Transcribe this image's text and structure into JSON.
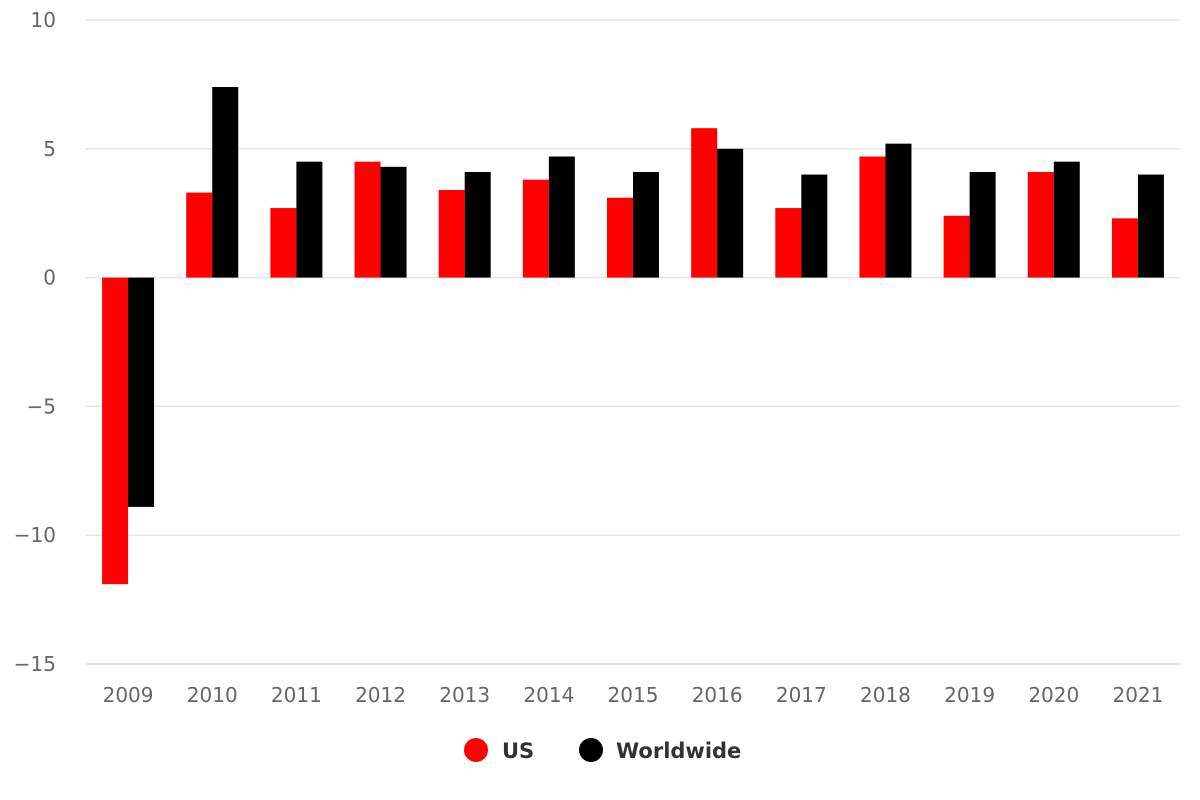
{
  "chart_data": {
    "type": "bar",
    "title": "",
    "xlabel": "",
    "ylabel": "",
    "categories": [
      "2009",
      "2010",
      "2011",
      "2012",
      "2013",
      "2014",
      "2015",
      "2016",
      "2017",
      "2018",
      "2019",
      "2020",
      "2021"
    ],
    "series": [
      {
        "name": "US",
        "color": "#ff0000",
        "values": [
          -11.9,
          3.3,
          2.7,
          4.5,
          3.4,
          3.8,
          3.1,
          5.8,
          2.7,
          4.7,
          2.4,
          4.1,
          2.3
        ]
      },
      {
        "name": "Worldwide",
        "color": "#000000",
        "values": [
          -8.9,
          7.4,
          4.5,
          4.3,
          4.1,
          4.7,
          4.1,
          5.0,
          4.0,
          5.2,
          4.1,
          4.5,
          4.0
        ]
      }
    ],
    "ylim": [
      -15,
      10
    ],
    "yticks": [
      10,
      5,
      0,
      -5,
      -10,
      -15
    ],
    "ytick_labels": [
      "10",
      "5",
      "0",
      "−5",
      "−10",
      "−15"
    ],
    "grid": true,
    "legend_position": "bottom-center"
  }
}
